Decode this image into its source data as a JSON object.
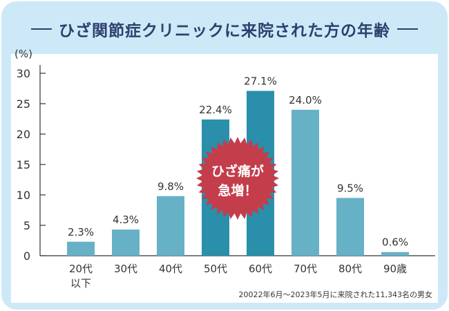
{
  "title": "ひざ関節症クリニックに来院された方の年齢",
  "footnote": "20022年6月～2023年5月に来院された11,343名の男女",
  "colors": {
    "bar": "#67b1c6",
    "bar_highlight": "#2a8fab",
    "badge": "#c43d4b",
    "title": "#2e3f6e"
  },
  "chart_data": {
    "type": "bar",
    "categories": [
      "20代\n以下",
      "30代",
      "40代",
      "50代",
      "60代",
      "70代",
      "80代",
      "90歳"
    ],
    "values": [
      2.3,
      4.3,
      9.8,
      22.4,
      27.1,
      24.0,
      9.5,
      0.6
    ],
    "value_labels": [
      "2.3%",
      "4.3%",
      "9.8%",
      "22.4%",
      "27.1%",
      "24.0%",
      "9.5%",
      "0.6%"
    ],
    "highlighted": [
      "50代",
      "60代"
    ],
    "ylabel": "(%)",
    "ylim": [
      0,
      30
    ],
    "yticks": [
      0,
      5,
      10,
      15,
      20,
      25,
      30
    ],
    "grid": false,
    "annotation": {
      "line1": "ひざ痛が",
      "line2": "急増！"
    }
  }
}
